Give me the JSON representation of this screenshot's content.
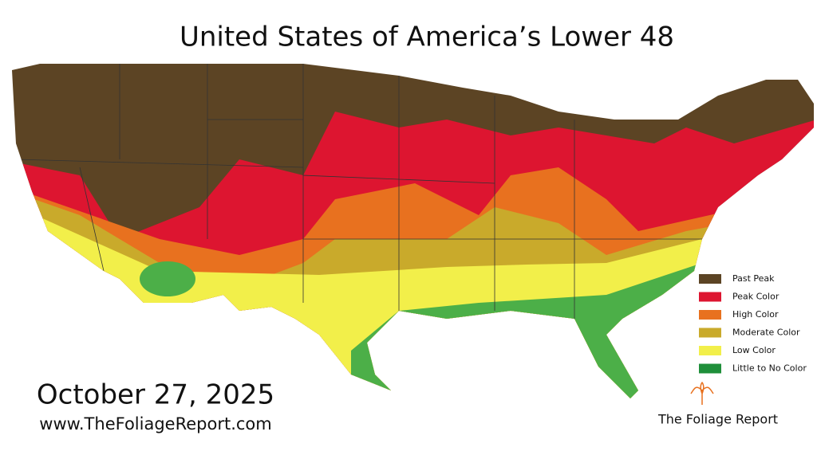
{
  "title": "United States of America’s Lower 48",
  "legend": [
    {
      "label": "Past Peak",
      "color": "#5c4424"
    },
    {
      "label": "Peak Color",
      "color": "#dd1530"
    },
    {
      "label": "High Color",
      "color": "#e8711f"
    },
    {
      "label": "Moderate Color",
      "color": "#c9aa2b"
    },
    {
      "label": "Low Color",
      "color": "#f2ef4a"
    },
    {
      "label": "Little to No Color",
      "color": "#1f8f3a"
    }
  ],
  "date": "October 27, 2025",
  "url": "www.TheFoliageReport.com",
  "brand": "The Foliage Report"
}
